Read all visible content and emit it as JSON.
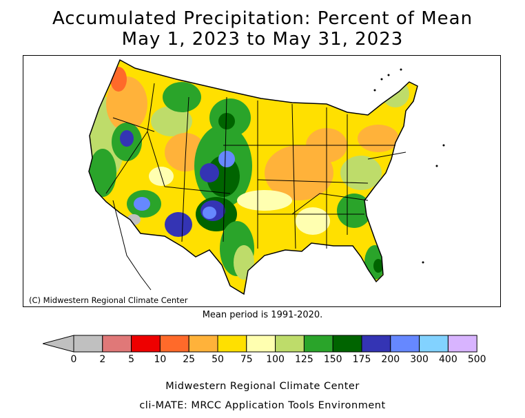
{
  "title_line1": "Accumulated Precipitation: Percent of Mean",
  "title_line2": "May 1, 2023 to May 31, 2023",
  "map_credit": "(C) Midwestern Regional Climate Center",
  "mean_period": "Mean period is 1991-2020.",
  "legend": {
    "ticks": [
      "0",
      "2",
      "5",
      "10",
      "25",
      "50",
      "75",
      "100",
      "125",
      "150",
      "175",
      "200",
      "300",
      "400",
      "500"
    ],
    "colors": [
      "#c0c0c0",
      "#e07878",
      "#ee0000",
      "#ff6a2a",
      "#ffb23a",
      "#ffe000",
      "#ffffb0",
      "#bedc6a",
      "#2aa42a",
      "#006400",
      "#3434b4",
      "#6688ff",
      "#82d2ff",
      "#d8b4ff"
    ],
    "below_zero_color": "#c0c0c0"
  },
  "footer_line1": "Midwestern Regional Climate Center",
  "footer_line2": "cli-MATE: MRCC Application Tools Environment"
}
